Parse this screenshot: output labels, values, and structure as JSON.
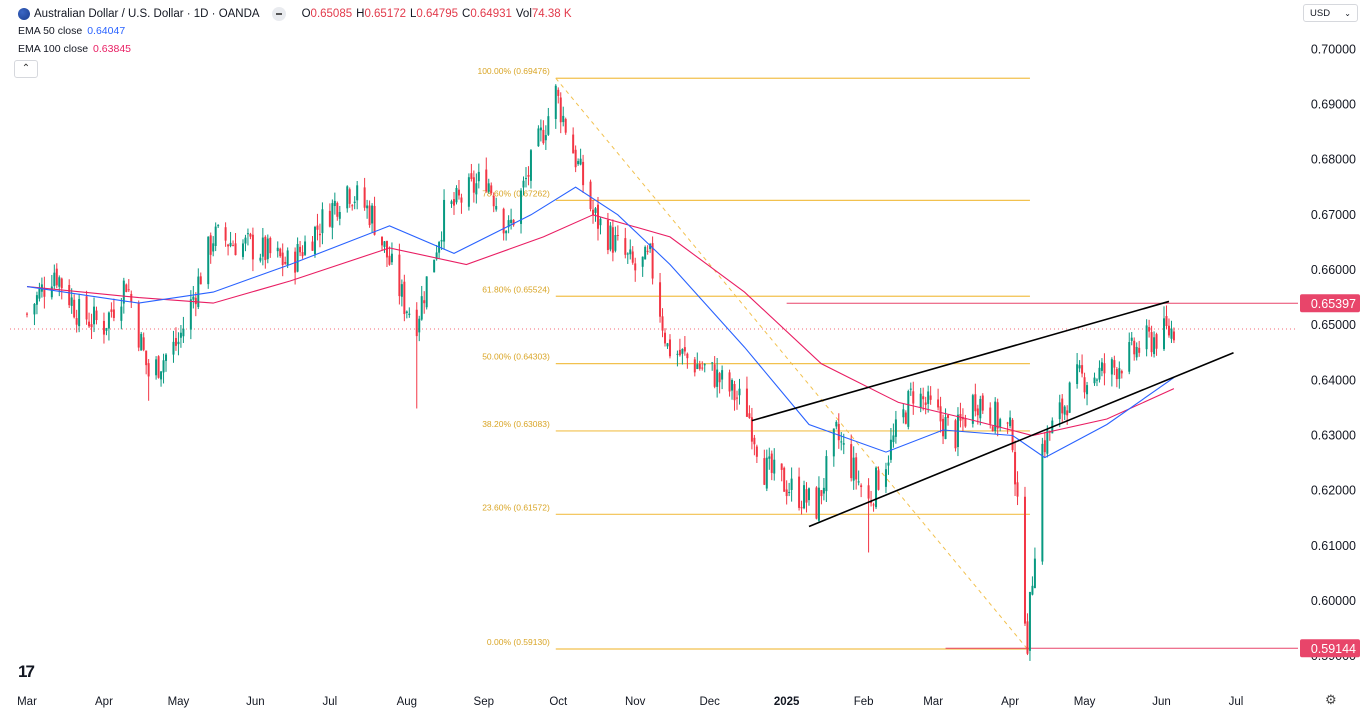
{
  "header": {
    "title": "Australian Dollar / U.S. Dollar · 1D · OANDA",
    "ohlc": [
      {
        "k": "O",
        "v": "0.65085"
      },
      {
        "k": "H",
        "v": "0.65172"
      },
      {
        "k": "L",
        "v": "0.64795"
      },
      {
        "k": "C",
        "v": "0.64931"
      },
      {
        "k": "Vol",
        "v": "74.38 K"
      }
    ],
    "ema50_label": "EMA 50 close",
    "ema50_value": "0.64047",
    "ema100_label": "EMA 100 close",
    "ema100_value": "0.63845",
    "currency": "USD",
    "logo": "17"
  },
  "colors": {
    "up": "#089981",
    "down": "#f23645",
    "ema50": "#2962ff",
    "ema100": "#e91e63",
    "fib": "#f2c14e",
    "badge": "#e8456a",
    "trend": "#000000"
  },
  "chart_data": {
    "type": "candlestick",
    "title": "Australian Dollar / U.S. Dollar · 1D · OANDA",
    "ylim": [
      0.5875,
      0.7035
    ],
    "price_ticks": [
      "0.70000",
      "0.69000",
      "0.68000",
      "0.67000",
      "0.66000",
      "0.65000",
      "0.64000",
      "0.63000",
      "0.62000",
      "0.61000",
      "0.60000",
      "0.59000"
    ],
    "x_labels": [
      "Mar",
      "Apr",
      "May",
      "Jun",
      "Jul",
      "Aug",
      "Sep",
      "Oct",
      "Nov",
      "Dec",
      "2025",
      "Feb",
      "Mar",
      "Apr",
      "May",
      "Jun",
      "Jul"
    ],
    "x_label_bold": "2025",
    "close_path": [
      [
        "2024-03-01",
        0.652
      ],
      [
        "2024-03-12",
        0.66
      ],
      [
        "2024-03-22",
        0.652
      ],
      [
        "2024-04-01",
        0.65
      ],
      [
        "2024-04-10",
        0.658
      ],
      [
        "2024-04-19",
        0.641
      ],
      [
        "2024-05-01",
        0.647
      ],
      [
        "2024-05-15",
        0.666
      ],
      [
        "2024-06-01",
        0.664
      ],
      [
        "2024-06-15",
        0.661
      ],
      [
        "2024-07-08",
        0.675
      ],
      [
        "2024-07-18",
        0.67
      ],
      [
        "2024-07-31",
        0.654
      ],
      [
        "2024-08-05",
        0.651
      ],
      [
        "2024-08-16",
        0.67
      ],
      [
        "2024-09-02",
        0.677
      ],
      [
        "2024-09-11",
        0.667
      ],
      [
        "2024-09-30",
        0.692
      ],
      [
        "2024-10-15",
        0.67
      ],
      [
        "2024-11-01",
        0.66
      ],
      [
        "2024-11-07",
        0.662
      ],
      [
        "2024-11-14",
        0.646
      ],
      [
        "2024-12-03",
        0.641
      ],
      [
        "2024-12-16",
        0.635
      ],
      [
        "2024-12-23",
        0.624
      ],
      [
        "2025-01-13",
        0.617
      ],
      [
        "2025-01-21",
        0.63
      ],
      [
        "2025-02-03",
        0.618
      ],
      [
        "2025-02-21",
        0.638
      ],
      [
        "2025-03-10",
        0.63
      ],
      [
        "2025-03-18",
        0.637
      ],
      [
        "2025-04-02",
        0.63
      ],
      [
        "2025-04-04",
        0.616
      ],
      [
        "2025-04-08",
        0.593
      ],
      [
        "2025-04-14",
        0.628
      ],
      [
        "2025-04-28",
        0.64
      ],
      [
        "2025-05-12",
        0.642
      ],
      [
        "2025-05-26",
        0.647
      ],
      [
        "2025-06-06",
        0.6493
      ]
    ],
    "ema50_path": [
      [
        "2024-03-01",
        0.657
      ],
      [
        "2024-04-15",
        0.654
      ],
      [
        "2024-05-15",
        0.656
      ],
      [
        "2024-06-15",
        0.661
      ],
      [
        "2024-07-25",
        0.668
      ],
      [
        "2024-08-20",
        0.663
      ],
      [
        "2024-09-20",
        0.67
      ],
      [
        "2024-10-08",
        0.675
      ],
      [
        "2024-10-25",
        0.67
      ],
      [
        "2024-11-15",
        0.661
      ],
      [
        "2024-12-15",
        0.646
      ],
      [
        "2025-01-10",
        0.632
      ],
      [
        "2025-02-10",
        0.627
      ],
      [
        "2025-03-05",
        0.631
      ],
      [
        "2025-04-02",
        0.63
      ],
      [
        "2025-04-15",
        0.626
      ],
      [
        "2025-05-10",
        0.632
      ],
      [
        "2025-06-06",
        0.6405
      ]
    ],
    "ema100_path": [
      [
        "2024-03-01",
        0.657
      ],
      [
        "2024-04-15",
        0.655
      ],
      [
        "2024-05-15",
        0.654
      ],
      [
        "2024-06-15",
        0.658
      ],
      [
        "2024-07-25",
        0.664
      ],
      [
        "2024-08-25",
        0.661
      ],
      [
        "2024-09-25",
        0.666
      ],
      [
        "2024-10-15",
        0.67
      ],
      [
        "2024-11-15",
        0.666
      ],
      [
        "2024-12-15",
        0.656
      ],
      [
        "2025-01-15",
        0.643
      ],
      [
        "2025-02-15",
        0.636
      ],
      [
        "2025-03-15",
        0.633
      ],
      [
        "2025-04-10",
        0.63
      ],
      [
        "2025-05-10",
        0.633
      ],
      [
        "2025-06-06",
        0.6385
      ]
    ],
    "wicks": [
      {
        "date": "2024-04-19",
        "low": 0.6363
      },
      {
        "date": "2024-08-05",
        "low": 0.6349
      },
      {
        "date": "2025-02-03",
        "low": 0.6088
      }
    ],
    "fib_levels": [
      {
        "label": "100.00% (0.69476)",
        "price": 0.69476
      },
      {
        "label": "78.60% (0.67262)",
        "price": 0.67262
      },
      {
        "label": "61.80% (0.65524)",
        "price": 0.65524
      },
      {
        "label": "50.00% (0.64303)",
        "price": 0.64303
      },
      {
        "label": "38.20% (0.63083)",
        "price": 0.63083
      },
      {
        "label": "23.60% (0.61572)",
        "price": 0.61572
      },
      {
        "label": "0.00% (0.59130)",
        "price": 0.5913
      }
    ],
    "fib_range": {
      "start": "2024-09-30",
      "end": "2025-04-09"
    },
    "fib_diagonal": [
      [
        "2024-09-30",
        0.69476
      ],
      [
        "2025-04-08",
        0.5913
      ]
    ],
    "trendlines": [
      [
        [
          "2024-12-18",
          0.6327
        ],
        [
          "2025-06-04",
          0.6543
        ]
      ],
      [
        [
          "2025-01-10",
          0.6135
        ],
        [
          "2025-06-30",
          0.645
        ]
      ]
    ],
    "horizontal_levels": [
      {
        "label": "0.65397",
        "price": 0.65397,
        "from": "2025-01-01"
      },
      {
        "label": "0.59144",
        "price": 0.59144,
        "from": "2025-03-06"
      }
    ],
    "last_price": 0.64931
  }
}
